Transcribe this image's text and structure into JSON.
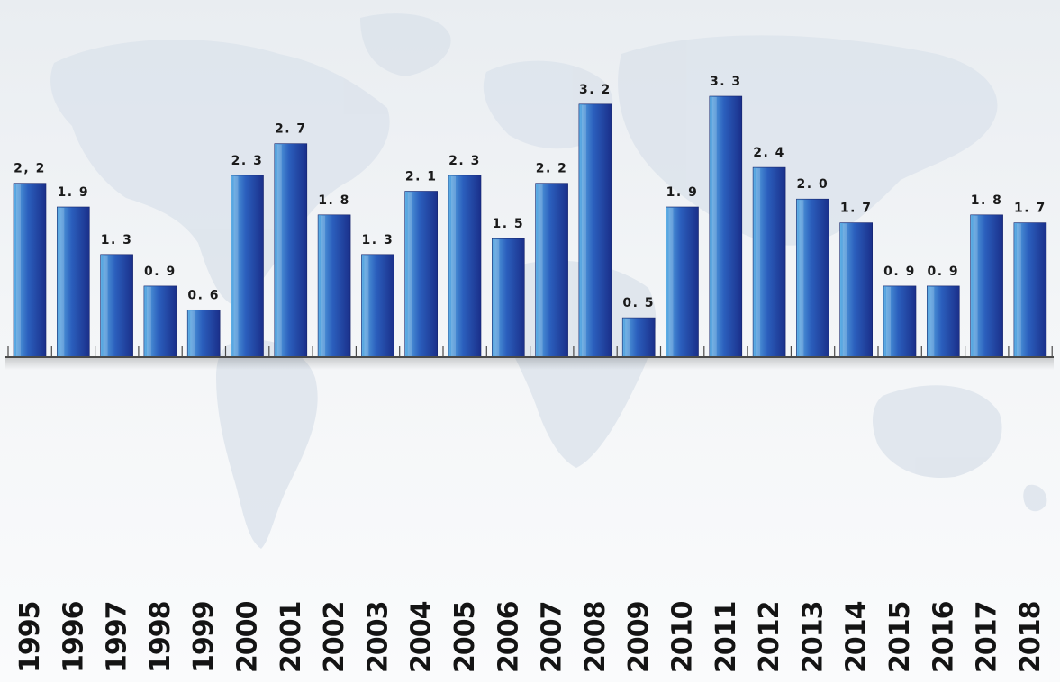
{
  "colors": {
    "bar_light": "#5fb1e6",
    "bar_mid": "#2b5fbd",
    "bar_dark": "#1a2f8a",
    "axis": "#4a4a4a",
    "map": "#dde4ec"
  },
  "chart_data": {
    "type": "bar",
    "title": "",
    "xlabel": "",
    "ylabel": "",
    "categories": [
      "1995",
      "1996",
      "1997",
      "1998",
      "1999",
      "2000",
      "2001",
      "2002",
      "2003",
      "2004",
      "2005",
      "2006",
      "2007",
      "2008",
      "2009",
      "2010",
      "2011",
      "2012",
      "2013",
      "2014",
      "2015",
      "2016",
      "2017",
      "2018"
    ],
    "values": [
      2.2,
      1.9,
      1.3,
      0.9,
      0.6,
      2.3,
      2.7,
      1.8,
      1.3,
      2.1,
      2.3,
      1.5,
      2.2,
      3.2,
      0.5,
      1.9,
      3.3,
      2.4,
      2.0,
      1.7,
      0.9,
      0.9,
      1.8,
      1.7
    ],
    "labels": [
      "2, 2",
      "1. 9",
      "1. 3",
      "0. 9",
      "0. 6",
      "2. 3",
      "2. 7",
      "1. 8",
      "1. 3",
      "2. 1",
      "2. 3",
      "1. 5",
      "2. 2",
      "3. 2",
      "0. 5",
      "1. 9",
      "3. 3",
      "2. 4",
      "2. 0",
      "1. 7",
      "0. 9",
      "0. 9",
      "1. 8",
      "1. 7"
    ],
    "ylim": [
      0,
      3.3
    ],
    "grid": false,
    "legend": "none"
  }
}
